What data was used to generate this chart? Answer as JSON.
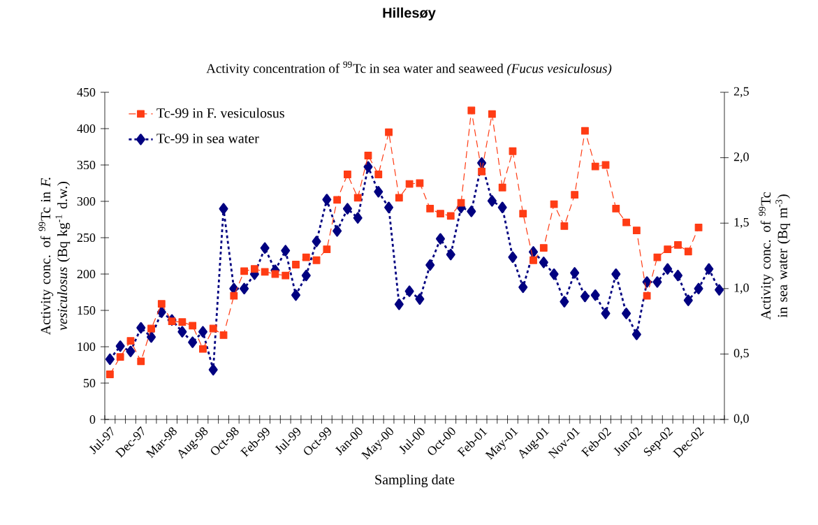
{
  "chart_data": {
    "type": "line",
    "title": "Hillesøy",
    "subtitle": "Activity concentration of $^{99}$Tc in sea water and seaweed *(Fucus vesiculosus)*",
    "xlabel": "Sampling date",
    "ylabel": "Activity conc. of $^{99}$Tc in *F. vesiculosus* (Bq kg$^{-1}$ d.w.)",
    "y2label": "Activity conc. of $^{99}$Tc in sea water (Bq m$^{-3}$)",
    "categories": [
      "Jul-97",
      null,
      null,
      "Dec-97",
      null,
      null,
      "Mar-98",
      null,
      null,
      "Aug-98",
      null,
      null,
      "Oct-98",
      null,
      null,
      "Feb-99",
      null,
      null,
      "Jul-99",
      null,
      null,
      "Oct-99",
      null,
      null,
      "Jan-00",
      null,
      null,
      "May-00",
      null,
      null,
      "Jul-00",
      null,
      null,
      "Oct-00",
      null,
      null,
      "Feb-01",
      null,
      null,
      "May-01",
      null,
      null,
      "Aug-01",
      null,
      null,
      "Nov-01",
      null,
      null,
      "Feb-02",
      null,
      null,
      "Jun-02",
      null,
      null,
      "Sep-02",
      null,
      null,
      "Dec-02",
      null,
      null
    ],
    "series": [
      {
        "name": "Tc-99 in F. vesiculosus",
        "color": "#ff3c14",
        "marker": "square",
        "line_style": "dashed",
        "values": [
          62,
          86,
          108,
          80,
          125,
          159,
          135,
          134,
          129,
          97,
          125,
          116,
          170,
          204,
          207,
          203,
          200,
          198,
          213,
          223,
          219,
          234,
          302,
          337,
          305,
          363,
          337,
          395,
          305,
          324,
          325,
          290,
          283,
          280,
          298,
          425,
          341,
          420,
          319,
          369,
          283,
          219,
          236,
          296,
          266,
          309,
          397,
          348,
          350,
          290,
          271,
          260,
          170,
          223,
          234,
          240,
          231,
          264,
          null,
          null
        ]
      },
      {
        "name": "Tc-99 in sea water",
        "color": "#000080",
        "marker": "diamond",
        "line_style": "dotted",
        "axis": "y2",
        "values": [
          0.46,
          0.56,
          0.52,
          0.7,
          0.63,
          0.82,
          0.76,
          0.67,
          0.59,
          0.67,
          0.38,
          1.61,
          1.0,
          1.0,
          1.11,
          1.31,
          1.14,
          1.29,
          0.95,
          1.1,
          1.36,
          1.68,
          1.44,
          1.61,
          1.54,
          1.93,
          1.74,
          1.62,
          0.88,
          0.98,
          0.92,
          1.18,
          1.38,
          1.26,
          1.62,
          1.59,
          1.96,
          1.67,
          1.62,
          1.24,
          1.01,
          1.28,
          1.2,
          1.11,
          0.9,
          1.12,
          0.94,
          0.95,
          0.81,
          1.11,
          0.81,
          0.65,
          1.05,
          1.05,
          1.15,
          1.1,
          0.91,
          1.0,
          1.15,
          0.99
        ]
      }
    ],
    "ylim": [
      0,
      450
    ],
    "yticks": [
      0,
      50,
      100,
      150,
      200,
      250,
      300,
      350,
      400,
      450
    ],
    "y2lim": [
      0,
      2.5
    ],
    "y2ticks": [
      {
        "value": 0,
        "label": "0,0"
      },
      {
        "value": 0.5,
        "label": "0,5"
      },
      {
        "value": 1,
        "label": "1,0"
      },
      {
        "value": 1.5,
        "label": "1,5"
      },
      {
        "value": 2,
        "label": "2,0"
      },
      {
        "value": 2.5,
        "label": "2,5"
      }
    ],
    "legend": "top left"
  }
}
